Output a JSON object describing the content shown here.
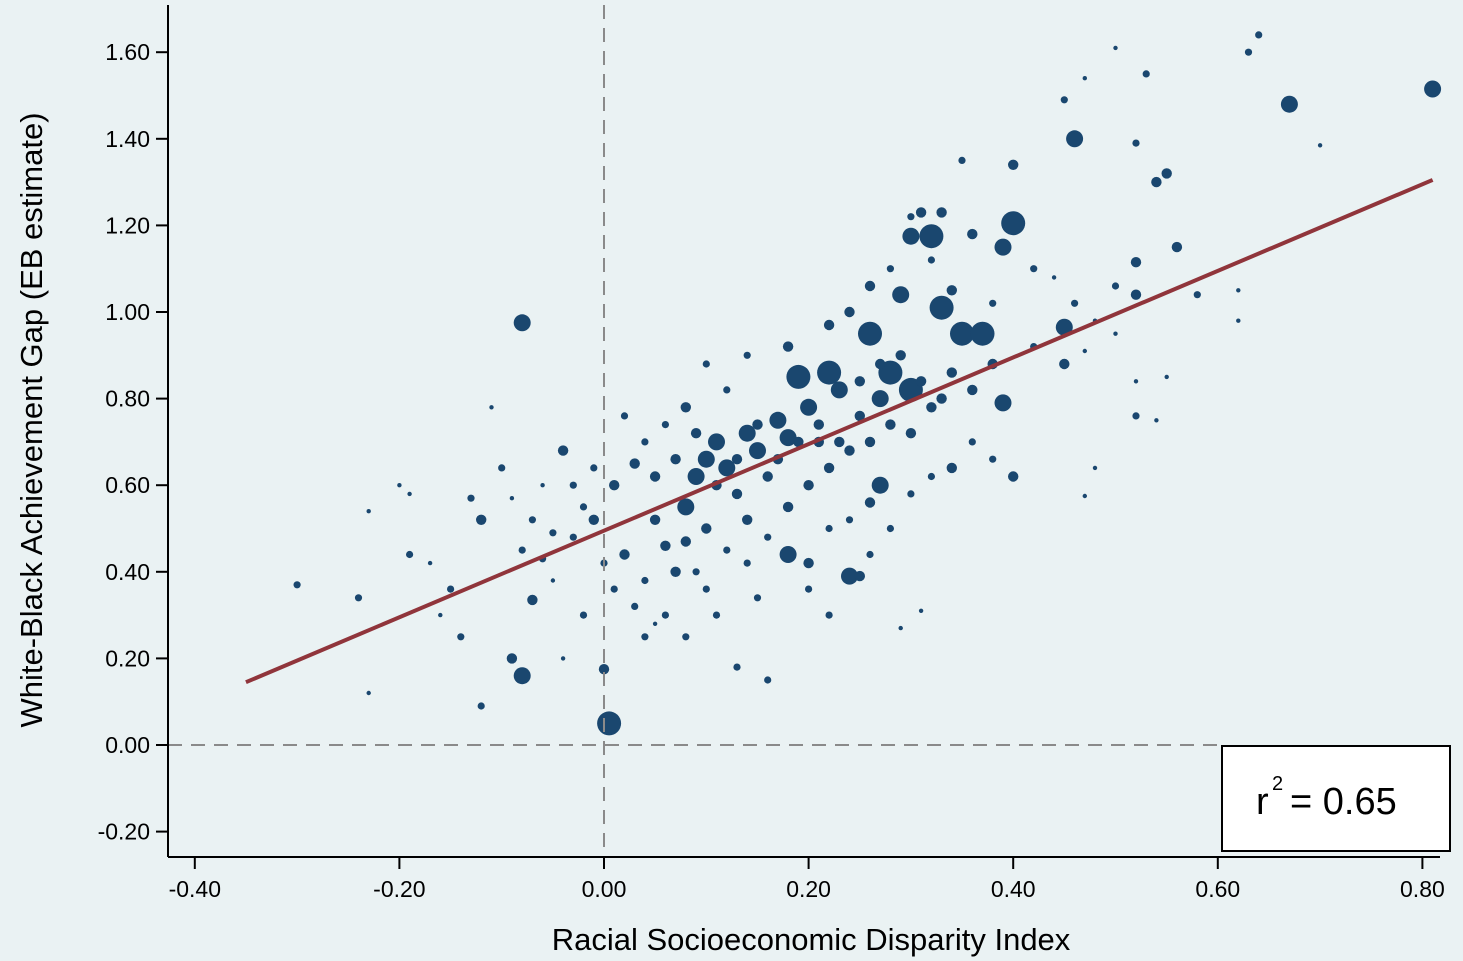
{
  "chart_data": {
    "type": "scatter",
    "title": "",
    "xlabel": "Racial Socioeconomic Disparity Index",
    "ylabel": "White-Black Achievement Gap (EB estimate)",
    "xlim": [
      -0.42,
      0.82
    ],
    "ylim": [
      -0.25,
      1.68
    ],
    "x_ticks": [
      -0.4,
      -0.2,
      0.0,
      0.2,
      0.4,
      0.6,
      0.8
    ],
    "x_tick_labels": [
      "-0.40",
      "-0.20",
      "0.00",
      "0.20",
      "0.40",
      "0.60",
      "0.80"
    ],
    "y_ticks": [
      -0.2,
      0.0,
      0.2,
      0.4,
      0.6,
      0.8,
      1.0,
      1.2,
      1.4,
      1.6
    ],
    "y_tick_labels": [
      "-0.20",
      "0.00",
      "0.20",
      "0.40",
      "0.60",
      "0.80",
      "1.00",
      "1.20",
      "1.40",
      "1.60"
    ],
    "grid": false,
    "reference_lines": {
      "x": 0.0,
      "y": 0.0,
      "style": "dashed"
    },
    "fit_line": {
      "x": [
        -0.35,
        0.81
      ],
      "y": [
        0.145,
        1.305
      ]
    },
    "annotation": {
      "base": "r",
      "superscript": "2",
      "text": "= 0.65",
      "placement": "bottom-right"
    },
    "colors": {
      "points": "#1a476f",
      "fit_line": "#90353b",
      "background": "#eaf2f3",
      "reference": "#8a8a8a"
    },
    "marker_size_scale": [
      1,
      5
    ],
    "points": [
      [
        0.005,
        0.05,
        5
      ],
      [
        -0.08,
        0.975,
        4
      ],
      [
        -0.08,
        0.16,
        4
      ],
      [
        0.81,
        1.515,
        4
      ],
      [
        0.67,
        1.48,
        4
      ],
      [
        0.3,
        1.175,
        4
      ],
      [
        0.32,
        1.175,
        5
      ],
      [
        0.4,
        1.205,
        5
      ],
      [
        0.45,
        0.965,
        4
      ],
      [
        0.46,
        1.4,
        4
      ],
      [
        0.35,
        0.95,
        5
      ],
      [
        0.37,
        0.95,
        5
      ],
      [
        0.33,
        1.01,
        5
      ],
      [
        0.29,
        1.04,
        4
      ],
      [
        0.26,
        0.95,
        5
      ],
      [
        0.28,
        0.86,
        5
      ],
      [
        0.3,
        0.82,
        5
      ],
      [
        0.22,
        0.86,
        5
      ],
      [
        0.19,
        0.85,
        5
      ],
      [
        0.27,
        0.6,
        4
      ],
      [
        0.39,
        1.15,
        4
      ],
      [
        0.39,
        0.79,
        4
      ],
      [
        0.4,
        0.62,
        3
      ],
      [
        0.24,
        0.39,
        4
      ],
      [
        0.25,
        0.39,
        3
      ],
      [
        -0.07,
        0.335,
        3
      ],
      [
        0.0,
        0.175,
        3
      ],
      [
        0.4,
        1.34,
        3
      ],
      [
        0.54,
        1.3,
        3
      ],
      [
        0.55,
        1.32,
        3
      ],
      [
        0.52,
        1.39,
        2
      ],
      [
        0.45,
        1.49,
        2
      ],
      [
        0.47,
        1.54,
        1
      ],
      [
        0.5,
        1.61,
        1
      ],
      [
        0.53,
        1.55,
        2
      ],
      [
        0.63,
        1.6,
        2
      ],
      [
        0.64,
        1.64,
        2
      ],
      [
        0.7,
        1.385,
        1
      ],
      [
        0.52,
        1.115,
        3
      ],
      [
        0.56,
        1.15,
        3
      ],
      [
        0.5,
        1.06,
        2
      ],
      [
        0.52,
        1.04,
        3
      ],
      [
        0.58,
        1.04,
        2
      ],
      [
        0.62,
        1.05,
        1
      ],
      [
        0.62,
        0.98,
        1
      ],
      [
        0.35,
        1.35,
        2
      ],
      [
        0.3,
        1.22,
        2
      ],
      [
        0.31,
        1.23,
        3
      ],
      [
        0.33,
        1.23,
        3
      ],
      [
        0.36,
        1.18,
        3
      ],
      [
        0.45,
        0.88,
        3
      ],
      [
        0.47,
        0.91,
        1
      ],
      [
        0.52,
        0.84,
        1
      ],
      [
        0.55,
        0.85,
        1
      ],
      [
        0.52,
        0.76,
        2
      ],
      [
        0.54,
        0.75,
        1
      ],
      [
        0.48,
        0.64,
        1
      ],
      [
        0.47,
        0.575,
        1
      ],
      [
        -0.3,
        0.37,
        2
      ],
      [
        -0.24,
        0.34,
        2
      ],
      [
        -0.23,
        0.54,
        1
      ],
      [
        -0.23,
        0.12,
        1
      ],
      [
        -0.2,
        0.6,
        1
      ],
      [
        -0.19,
        0.58,
        1
      ],
      [
        -0.19,
        0.44,
        2
      ],
      [
        -0.13,
        0.57,
        2
      ],
      [
        -0.12,
        0.52,
        3
      ],
      [
        -0.12,
        0.09,
        2
      ],
      [
        -0.11,
        0.78,
        1
      ],
      [
        -0.1,
        0.64,
        2
      ],
      [
        -0.09,
        0.57,
        1
      ],
      [
        -0.09,
        0.2,
        3
      ],
      [
        -0.06,
        0.43,
        2
      ],
      [
        -0.05,
        0.49,
        2
      ],
      [
        -0.04,
        0.68,
        3
      ],
      [
        -0.05,
        0.38,
        1
      ],
      [
        -0.03,
        0.48,
        2
      ],
      [
        -0.02,
        0.55,
        2
      ],
      [
        -0.01,
        0.52,
        3
      ],
      [
        0.01,
        0.6,
        3
      ],
      [
        0.03,
        0.65,
        3
      ],
      [
        0.05,
        0.52,
        3
      ],
      [
        0.06,
        0.46,
        3
      ],
      [
        0.07,
        0.4,
        3
      ],
      [
        0.08,
        0.55,
        4
      ],
      [
        0.09,
        0.62,
        4
      ],
      [
        0.1,
        0.66,
        4
      ],
      [
        0.11,
        0.7,
        4
      ],
      [
        0.12,
        0.64,
        4
      ],
      [
        0.13,
        0.58,
        3
      ],
      [
        0.14,
        0.72,
        4
      ],
      [
        0.15,
        0.68,
        4
      ],
      [
        0.16,
        0.62,
        3
      ],
      [
        0.17,
        0.75,
        4
      ],
      [
        0.18,
        0.71,
        4
      ],
      [
        0.2,
        0.78,
        4
      ],
      [
        0.21,
        0.7,
        3
      ],
      [
        0.23,
        0.82,
        4
      ],
      [
        0.25,
        0.76,
        3
      ],
      [
        0.27,
        0.8,
        4
      ],
      [
        0.02,
        0.44,
        3
      ],
      [
        0.04,
        0.38,
        2
      ],
      [
        0.06,
        0.3,
        2
      ],
      [
        0.08,
        0.47,
        3
      ],
      [
        0.1,
        0.5,
        3
      ],
      [
        0.12,
        0.45,
        2
      ],
      [
        0.14,
        0.52,
        3
      ],
      [
        0.16,
        0.48,
        2
      ],
      [
        0.18,
        0.55,
        3
      ],
      [
        0.2,
        0.6,
        3
      ],
      [
        0.22,
        0.64,
        3
      ],
      [
        0.24,
        0.68,
        3
      ],
      [
        0.26,
        0.7,
        3
      ],
      [
        0.28,
        0.74,
        3
      ],
      [
        0.3,
        0.72,
        3
      ],
      [
        0.32,
        0.78,
        3
      ],
      [
        0.34,
        0.86,
        3
      ],
      [
        0.36,
        0.82,
        3
      ],
      [
        0.38,
        0.88,
        3
      ],
      [
        0.42,
        0.92,
        2
      ],
      [
        0.13,
        0.18,
        2
      ],
      [
        0.16,
        0.15,
        2
      ],
      [
        0.08,
        0.25,
        2
      ],
      [
        0.04,
        0.25,
        2
      ],
      [
        0.11,
        0.3,
        2
      ],
      [
        0.29,
        0.27,
        1
      ],
      [
        0.31,
        0.31,
        1
      ],
      [
        0.22,
        0.3,
        2
      ],
      [
        0.2,
        0.42,
        3
      ],
      [
        0.18,
        0.44,
        4
      ],
      [
        0.12,
        0.82,
        2
      ],
      [
        0.08,
        0.78,
        3
      ],
      [
        0.06,
        0.74,
        2
      ],
      [
        0.04,
        0.7,
        2
      ],
      [
        0.02,
        0.76,
        2
      ],
      [
        0.1,
        0.88,
        2
      ],
      [
        0.14,
        0.9,
        2
      ],
      [
        0.18,
        0.92,
        3
      ],
      [
        0.22,
        0.97,
        3
      ],
      [
        0.24,
        1.0,
        3
      ],
      [
        0.26,
        1.06,
        3
      ],
      [
        0.28,
        1.1,
        2
      ],
      [
        0.32,
        1.12,
        2
      ],
      [
        0.34,
        1.05,
        3
      ],
      [
        0.38,
        1.02,
        2
      ],
      [
        0.2,
        0.36,
        2
      ],
      [
        0.15,
        0.34,
        2
      ],
      [
        0.1,
        0.36,
        2
      ],
      [
        -0.02,
        0.3,
        2
      ],
      [
        -0.04,
        0.2,
        1
      ],
      [
        0.05,
        0.62,
        3
      ],
      [
        0.07,
        0.66,
        3
      ],
      [
        0.09,
        0.72,
        3
      ],
      [
        0.11,
        0.6,
        3
      ],
      [
        0.13,
        0.66,
        3
      ],
      [
        0.15,
        0.74,
        3
      ],
      [
        0.17,
        0.66,
        3
      ],
      [
        0.19,
        0.7,
        3
      ],
      [
        0.21,
        0.74,
        3
      ],
      [
        0.23,
        0.7,
        3
      ],
      [
        0.25,
        0.84,
        3
      ],
      [
        0.27,
        0.88,
        3
      ],
      [
        0.29,
        0.9,
        3
      ],
      [
        0.31,
        0.84,
        3
      ],
      [
        0.33,
        0.8,
        3
      ],
      [
        -0.15,
        0.36,
        2
      ],
      [
        -0.16,
        0.3,
        1
      ],
      [
        -0.14,
        0.25,
        2
      ],
      [
        -0.17,
        0.42,
        1
      ],
      [
        -0.08,
        0.45,
        2
      ],
      [
        -0.07,
        0.52,
        2
      ],
      [
        -0.06,
        0.6,
        1
      ],
      [
        -0.03,
        0.6,
        2
      ],
      [
        -0.01,
        0.64,
        2
      ],
      [
        0.0,
        0.42,
        2
      ],
      [
        0.01,
        0.36,
        2
      ],
      [
        0.03,
        0.32,
        2
      ],
      [
        0.05,
        0.28,
        1
      ],
      [
        0.09,
        0.4,
        2
      ],
      [
        0.14,
        0.42,
        2
      ],
      [
        0.42,
        1.1,
        2
      ],
      [
        0.44,
        1.08,
        1
      ],
      [
        0.46,
        1.02,
        2
      ],
      [
        0.48,
        0.98,
        1
      ],
      [
        0.5,
        0.95,
        1
      ],
      [
        0.36,
        0.7,
        2
      ],
      [
        0.38,
        0.66,
        2
      ],
      [
        0.34,
        0.64,
        3
      ],
      [
        0.32,
        0.62,
        2
      ],
      [
        0.3,
        0.58,
        2
      ],
      [
        0.26,
        0.56,
        3
      ],
      [
        0.24,
        0.52,
        2
      ],
      [
        0.22,
        0.5,
        2
      ],
      [
        0.28,
        0.5,
        2
      ],
      [
        0.26,
        0.44,
        2
      ]
    ]
  }
}
